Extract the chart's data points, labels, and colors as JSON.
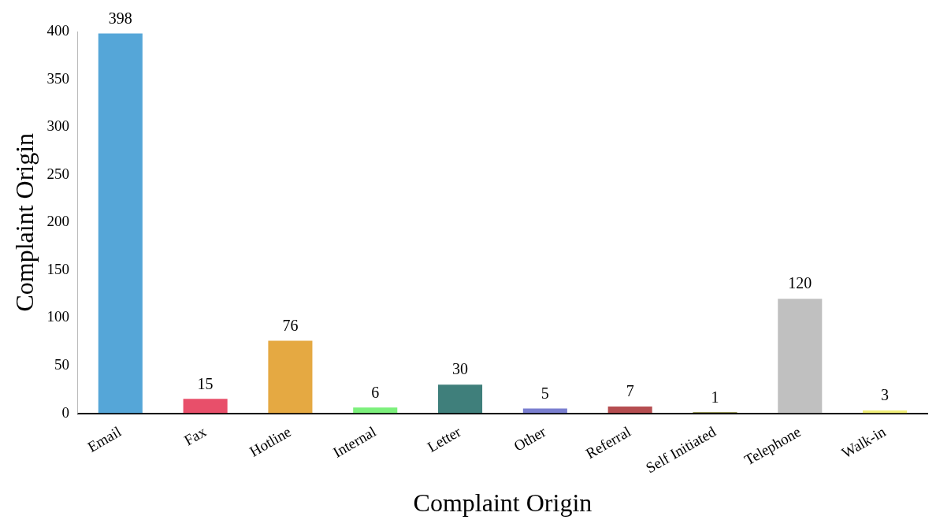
{
  "chart_data": {
    "type": "bar",
    "xlabel": "Complaint Origin",
    "ylabel": "Complaint Origin",
    "categories": [
      "Email",
      "Fax",
      "Hotline",
      "Internal",
      "Letter",
      "Other",
      "Referral",
      "Self Initiated",
      "Telephone",
      "Walk-in"
    ],
    "values": [
      398,
      15,
      76,
      6,
      30,
      5,
      7,
      1,
      120,
      3
    ],
    "colors": [
      "#55a6d8",
      "#e84f6a",
      "#e5a942",
      "#7cf07c",
      "#3f7f7b",
      "#7a7fd0",
      "#b54d50",
      "#6e6e1e",
      "#c0c0c0",
      "#f0ee78"
    ],
    "ylim": [
      0,
      400
    ],
    "yticks": [
      0,
      50,
      100,
      150,
      200,
      250,
      300,
      350,
      400
    ],
    "grid": false,
    "legend": false,
    "data_labels": true
  }
}
